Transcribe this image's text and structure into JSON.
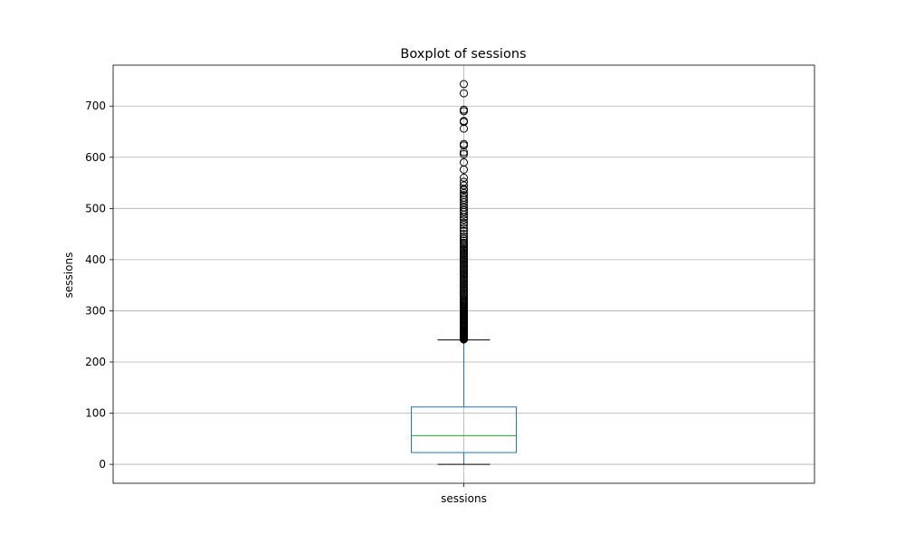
{
  "chart_data": {
    "type": "boxplot",
    "title": "Boxplot of sessions",
    "xlabel": "",
    "ylabel": "sessions",
    "categories": [
      "sessions"
    ],
    "ylim": [
      -37,
      780
    ],
    "yticks": [
      0,
      100,
      200,
      300,
      400,
      500,
      600,
      700
    ],
    "grid": true,
    "colors": {
      "box": "#1f77b4",
      "whisker": "#1f77b4",
      "median": "#2ca02c",
      "cap": "#000000",
      "outlier": "#000000",
      "grid": "#b0b0b0"
    },
    "box": {
      "label": "sessions",
      "min_whisker": 0,
      "q1": 23,
      "median": 56,
      "q3": 112,
      "max_whisker": 243
    },
    "outliers": [
      244,
      245,
      246,
      247,
      248,
      249,
      250,
      251,
      252,
      253,
      254,
      255,
      256,
      257,
      258,
      259,
      260,
      262,
      264,
      266,
      268,
      270,
      272,
      274,
      276,
      278,
      280,
      282,
      284,
      286,
      288,
      290,
      292,
      294,
      296,
      298,
      300,
      302,
      304,
      306,
      308,
      310,
      312,
      314,
      316,
      318,
      320,
      322,
      325,
      328,
      331,
      334,
      337,
      340,
      343,
      346,
      349,
      352,
      355,
      358,
      361,
      364,
      367,
      370,
      373,
      376,
      379,
      382,
      385,
      388,
      391,
      394,
      397,
      400,
      403,
      406,
      409,
      412,
      415,
      418,
      421,
      424,
      427,
      430,
      433,
      437,
      441,
      445,
      450,
      456,
      462,
      468,
      472,
      478,
      483,
      488,
      493,
      497,
      502,
      507,
      512,
      517,
      521,
      526,
      530,
      536,
      538,
      545,
      552,
      560,
      576,
      590,
      606,
      610,
      623,
      626,
      656,
      669,
      671,
      690,
      693,
      725,
      743
    ]
  }
}
